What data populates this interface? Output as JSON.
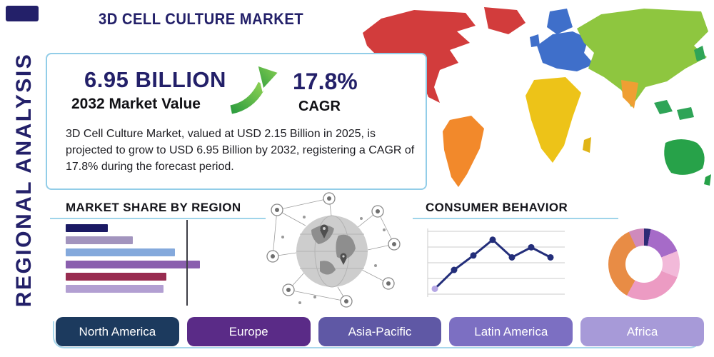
{
  "palette": {
    "accent_navy": "#232069",
    "panel_border_blue": "#92cde8",
    "underline_blue": "#9fd4ea",
    "arrow_green": "#4db848"
  },
  "header": {
    "title": "3D CELL CULTURE MARKET",
    "side_label": "REGIONAL ANALYSIS"
  },
  "stats_panel": {
    "market_value": "6.95 BILLION",
    "market_value_caption": "2032 Market Value",
    "growth_icon": "growth-arrow-icon",
    "cagr_value": "17.8%",
    "cagr_caption": "CAGR",
    "description": "3D Cell Culture Market, valued at USD 2.15 Billion in 2025, is projected to grow to USD 6.95 Billion by 2032, registering a CAGR of 17.8% during the forecast period."
  },
  "sections": {
    "market_share_title": "MARKET SHARE BY REGION",
    "consumer_behavior_title": "CONSUMER BEHAVIOR"
  },
  "region_buttons": [
    {
      "label": "North America",
      "color": "#1c3a5e"
    },
    {
      "label": "Europe",
      "color": "#5a2b87"
    },
    {
      "label": "Asia-Pacific",
      "color": "#5f58a5"
    },
    {
      "label": "Latin America",
      "color": "#7c6fc2"
    },
    {
      "label": "Africa",
      "color": "#a79ad8"
    }
  ],
  "map": {
    "name": "world-map",
    "continent_colors": {
      "north_america": "#d23c3c",
      "greenland": "#d23c3c",
      "south_america": "#f2892b",
      "europe": "#3f6fca",
      "africa": "#edc318",
      "madagascar": "#e0b416",
      "asia": "#8ec63f",
      "middle_east_india": "#ef9f33",
      "southeast_asia": "#2fa457",
      "japan": "#2fa457",
      "australia": "#27a249",
      "new_zealand": "#27a249"
    }
  },
  "chart_data": [
    {
      "type": "bar",
      "title": "MARKET SHARE BY REGION",
      "orientation": "horizontal",
      "values": [
        15,
        24,
        39,
        48,
        36,
        35
      ],
      "value_axis_max": 50,
      "reference_line_value": 43,
      "bar_colors": [
        "#1b1a64",
        "#a294be",
        "#84a9dc",
        "#8a5fae",
        "#982c50",
        "#b29fd2"
      ],
      "tick_labels_visible": false,
      "note": "bars are unlabeled in source; values estimated from bar lengths (% scale)"
    },
    {
      "type": "line",
      "title": "CONSUMER BEHAVIOR",
      "x": [
        1,
        2,
        3,
        4,
        5,
        6,
        7
      ],
      "values": [
        12,
        42,
        65,
        90,
        62,
        78,
        62
      ],
      "ylim": [
        0,
        100
      ],
      "grid": true,
      "line_color": "#232e7a",
      "first_marker_color": "#b5a6e4",
      "tick_labels_visible": false,
      "note": "trend line is unlabeled in source; values estimated from marker heights"
    },
    {
      "type": "pie",
      "subtype": "donut",
      "slices": [
        {
          "name": "navy",
          "color": "#2d2b75",
          "value": 3
        },
        {
          "name": "purple",
          "color": "#a66bc8",
          "value": 16
        },
        {
          "name": "light-pink",
          "color": "#f2b9d9",
          "value": 12
        },
        {
          "name": "pink",
          "color": "#ec9bc3",
          "value": 27
        },
        {
          "name": "orange",
          "color": "#e88c45",
          "value": 35
        },
        {
          "name": "mauve",
          "color": "#cf8abc",
          "value": 7
        }
      ],
      "tick_labels_visible": false,
      "note": "donut is unlabeled in source; slice shares estimated from arc angles (%)"
    }
  ]
}
